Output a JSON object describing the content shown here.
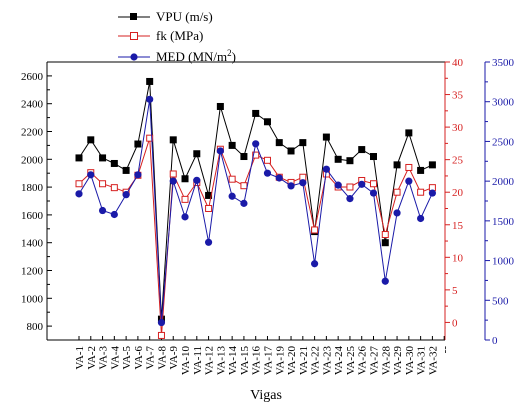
{
  "chart_data": {
    "type": "line",
    "xlabel": "Vigas",
    "categories": [
      "VA-1",
      "VA-2",
      "VA-3",
      "VA-4",
      "VA-5",
      "VA-6",
      "VA-7",
      "VA-8",
      "VA-9",
      "VA-10",
      "VA-11",
      "VA-12",
      "VA-13",
      "VA-14",
      "VA-15",
      "VA-16",
      "VA-17",
      "VA-19",
      "VA-20",
      "VA-21",
      "VA-22",
      "VA-23",
      "VA-24",
      "VA-25",
      "VA-26",
      "VA-27",
      "VA-28",
      "VA-29",
      "VA-30",
      "VA-31",
      "VA-32"
    ],
    "extra_tick_label": "--",
    "axes": {
      "left": {
        "min": 700,
        "max": 2700,
        "ticks": [
          800,
          1000,
          1200,
          1400,
          1600,
          1800,
          2000,
          2200,
          2400,
          2600
        ],
        "color": "#000000"
      },
      "right1": {
        "min": -2.7,
        "max": 40,
        "ticks": [
          0,
          5,
          10,
          15,
          20,
          25,
          30,
          35,
          40
        ],
        "color": "#d62020"
      },
      "right2": {
        "min": 0,
        "max": 3500,
        "ticks": [
          0,
          500,
          1000,
          1500,
          2000,
          2500,
          3000,
          3500
        ],
        "color": "#1a1aa8"
      }
    },
    "series": [
      {
        "name": "VPU (m/s)",
        "axis": "left",
        "color": "#000000",
        "marker": "square-filled",
        "values": [
          2010,
          2140,
          2010,
          1970,
          1920,
          2110,
          2560,
          850,
          2140,
          1860,
          2040,
          1740,
          2380,
          2100,
          2020,
          2330,
          2270,
          2120,
          2060,
          2120,
          1480,
          2160,
          2000,
          1990,
          2070,
          2020,
          1400,
          1960,
          2190,
          1920,
          1960
        ]
      },
      {
        "name": "fk (MPa)",
        "axis": "right1",
        "color": "#d62020",
        "marker": "square-open",
        "values": [
          21.3,
          23.0,
          21.3,
          20.7,
          20.0,
          22.6,
          28.3,
          -2.0,
          22.8,
          18.9,
          21.5,
          17.5,
          26.6,
          22.0,
          21.0,
          25.7,
          24.9,
          22.3,
          21.5,
          22.3,
          14.2,
          22.8,
          20.8,
          20.8,
          21.8,
          21.3,
          13.5,
          20.0,
          23.8,
          20.0,
          20.7
        ]
      },
      {
        "name": "MED (MN/m²)",
        "axis": "right2",
        "color": "#1a1aa8",
        "marker": "circle-filled",
        "values": [
          1840,
          2080,
          1630,
          1580,
          1830,
          2080,
          3030,
          220,
          2000,
          1550,
          2010,
          1230,
          2380,
          1810,
          1720,
          2470,
          2100,
          2040,
          1940,
          1980,
          960,
          2150,
          1950,
          1780,
          1960,
          1850,
          740,
          1600,
          2000,
          1530,
          1850
        ]
      }
    ]
  },
  "legend": {
    "vpu": "VPU (m/s)",
    "fk": "fk (MPa)",
    "med_prefix": "MED (MN/m",
    "med_sup": "2",
    "med_suffix": ")"
  }
}
